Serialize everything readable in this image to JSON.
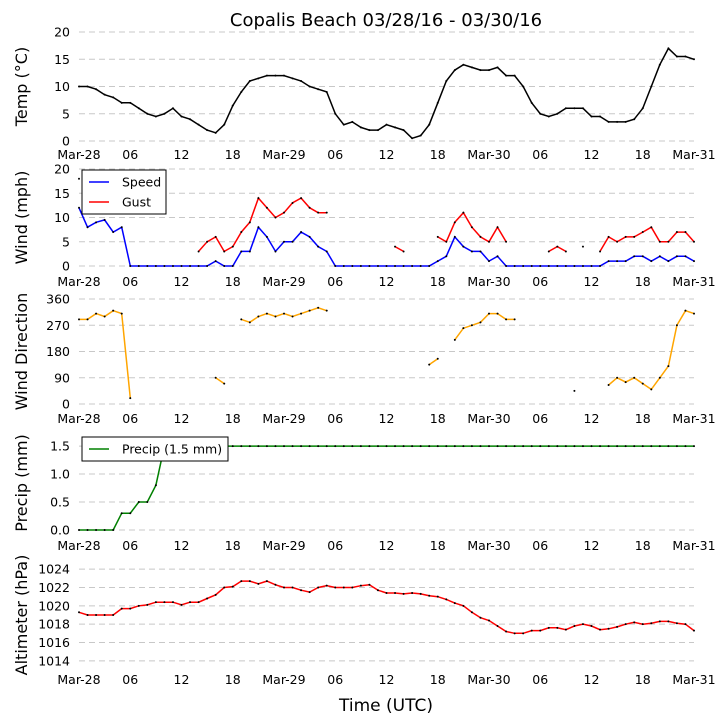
{
  "chart_data": {
    "title": "Copalis Beach 03/28/16 - 03/30/16",
    "xlabel": "Time (UTC)",
    "x_unit": "hours since Mar-28 00 UTC",
    "xlim": [
      0,
      72
    ],
    "x_ticks": [
      0,
      6,
      12,
      18,
      24,
      30,
      36,
      42,
      48,
      54,
      60,
      66,
      72
    ],
    "x_tick_labels": [
      "Mar-28",
      "06",
      "12",
      "18",
      "Mar-29",
      "06",
      "12",
      "18",
      "Mar-30",
      "06",
      "12",
      "18",
      "Mar-31"
    ],
    "panels": [
      {
        "id": "temp",
        "type": "line",
        "ylabel": "Temp ($^\\circ$C)",
        "ylabel_text": "Temp (°C)",
        "ylim": [
          0,
          20
        ],
        "y_ticks": [
          0,
          5,
          10,
          15,
          20
        ],
        "y_tick_labels": [
          "0",
          "5",
          "10",
          "15",
          "20"
        ],
        "legend": null,
        "series": [
          {
            "name": "Temp",
            "color": "#000000",
            "values": [
              10,
              10,
              9.5,
              8.5,
              8,
              7,
              7,
              6,
              5,
              4.5,
              5,
              6,
              4.5,
              4,
              3,
              2,
              1.5,
              3,
              6.5,
              9,
              11,
              11.5,
              12,
              12,
              12,
              11.5,
              11,
              10,
              9.5,
              9,
              5,
              3,
              3.5,
              2.5,
              2,
              2,
              3,
              2.5,
              2,
              0.5,
              1,
              3,
              7,
              11,
              13,
              14,
              13.5,
              13,
              13,
              13.5,
              12,
              12,
              10,
              7,
              5,
              4.5,
              5,
              6,
              6,
              6,
              4.5,
              4.5,
              3.5,
              3.5,
              3.5,
              4,
              6,
              10,
              14,
              17,
              15.5,
              15.5,
              15
            ]
          }
        ]
      },
      {
        "id": "wind",
        "type": "line",
        "ylabel": "Wind (mph)",
        "ylim": [
          0,
          20
        ],
        "y_ticks": [
          0,
          5,
          10,
          15,
          20
        ],
        "y_tick_labels": [
          "0",
          "5",
          "10",
          "15",
          "20"
        ],
        "legend": "upper-left",
        "series": [
          {
            "name": "Speed",
            "color": "#0000ff",
            "values": [
              12,
              8,
              9,
              9.5,
              7,
              8,
              0,
              0,
              0,
              0,
              0,
              0,
              0,
              0,
              0,
              0,
              1,
              0,
              0,
              3,
              3,
              8,
              6,
              3,
              5,
              5,
              7,
              6,
              4,
              3,
              0,
              0,
              0,
              0,
              0,
              0,
              0,
              0,
              0,
              0,
              0,
              0,
              1,
              2,
              6,
              4,
              3,
              3,
              1,
              2,
              0,
              0,
              0,
              0,
              0,
              0,
              0,
              0,
              0,
              0,
              0,
              0,
              1,
              1,
              1,
              2,
              2,
              1,
              2,
              1,
              2,
              2,
              1
            ]
          },
          {
            "name": "Gust",
            "color": "#ff0000",
            "values": [
              18,
              null,
              null,
              null,
              null,
              null,
              null,
              null,
              null,
              null,
              null,
              null,
              null,
              null,
              3,
              5,
              6,
              3,
              4,
              7,
              9,
              14,
              12,
              10,
              11,
              13,
              14,
              12,
              11,
              11,
              null,
              null,
              null,
              null,
              null,
              null,
              null,
              4,
              3,
              null,
              null,
              null,
              6,
              5,
              9,
              11,
              8,
              6,
              5,
              8,
              5,
              null,
              null,
              null,
              null,
              3,
              4,
              3,
              null,
              4,
              null,
              3,
              6,
              5,
              6,
              6,
              7,
              8,
              5,
              5,
              7,
              7,
              5
            ]
          }
        ]
      },
      {
        "id": "direction",
        "type": "line",
        "ylabel": "Wind Direction",
        "ylim": [
          0,
          360
        ],
        "y_ticks": [
          0,
          90,
          180,
          270,
          360
        ],
        "y_tick_labels": [
          "0",
          "90",
          "180",
          "270",
          "360"
        ],
        "legend": null,
        "series": [
          {
            "name": "Direction",
            "color": "#ffa500",
            "values": [
              290,
              290,
              310,
              300,
              320,
              310,
              20,
              null,
              null,
              null,
              null,
              null,
              null,
              null,
              null,
              null,
              90,
              70,
              null,
              290,
              280,
              300,
              310,
              300,
              310,
              300,
              310,
              320,
              330,
              320,
              null,
              null,
              null,
              null,
              null,
              null,
              null,
              null,
              null,
              null,
              null,
              135,
              155,
              null,
              220,
              260,
              270,
              280,
              310,
              310,
              290,
              290,
              null,
              null,
              null,
              null,
              null,
              null,
              45,
              null,
              null,
              null,
              65,
              90,
              75,
              90,
              70,
              50,
              90,
              130,
              270,
              320,
              310
            ]
          }
        ]
      },
      {
        "id": "precip",
        "type": "line",
        "ylabel": "Precip (mm)",
        "ylim": [
          0,
          1.68
        ],
        "y_ticks": [
          0,
          0.5,
          1.0,
          1.5
        ],
        "y_tick_labels": [
          "0.0",
          "0.5",
          "1.0",
          "1.5"
        ],
        "legend": "upper-left",
        "series": [
          {
            "name": "Precip (1.5 mm)",
            "color": "#008000",
            "values": [
              0,
              0,
              0,
              0,
              0,
              0.3,
              0.3,
              0.5,
              0.5,
              0.8,
              1.5,
              1.5,
              1.5,
              1.5,
              1.5,
              1.5,
              1.5,
              1.5,
              1.5,
              1.5,
              1.5,
              1.5,
              1.5,
              1.5,
              1.5,
              1.5,
              1.5,
              1.5,
              1.5,
              1.5,
              1.5,
              1.5,
              1.5,
              1.5,
              1.5,
              1.5,
              1.5,
              1.5,
              1.5,
              1.5,
              1.5,
              1.5,
              1.5,
              1.5,
              1.5,
              1.5,
              1.5,
              1.5,
              1.5,
              1.5,
              1.5,
              1.5,
              1.5,
              1.5,
              1.5,
              1.5,
              1.5,
              1.5,
              1.5,
              1.5,
              1.5,
              1.5,
              1.5,
              1.5,
              1.5,
              1.5,
              1.5,
              1.5,
              1.5,
              1.5,
              1.5,
              1.5,
              1.5
            ]
          }
        ]
      },
      {
        "id": "altimeter",
        "type": "line",
        "ylabel": "Altimeter (hPa)",
        "ylim": [
          1013,
          1025
        ],
        "y_ticks": [
          1014,
          1016,
          1018,
          1020,
          1022,
          1024
        ],
        "y_tick_labels": [
          "1014",
          "1016",
          "1018",
          "1020",
          "1022",
          "1024"
        ],
        "legend": null,
        "series": [
          {
            "name": "Altimeter",
            "color": "#ff0000",
            "values": [
              1019.3,
              1019,
              1019,
              1019,
              1019,
              1019.7,
              1019.7,
              1020,
              1020.1,
              1020.4,
              1020.4,
              1020.4,
              1020.1,
              1020.4,
              1020.4,
              1020.8,
              1021.2,
              1022,
              1022.1,
              1022.7,
              1022.7,
              1022.4,
              1022.7,
              1022.3,
              1022,
              1022,
              1021.7,
              1021.5,
              1022,
              1022.2,
              1022,
              1022,
              1022,
              1022.2,
              1022.3,
              1021.7,
              1021.4,
              1021.4,
              1021.3,
              1021.4,
              1021.3,
              1021.1,
              1021,
              1020.7,
              1020.3,
              1020,
              1019.3,
              1018.7,
              1018.4,
              1017.8,
              1017.2,
              1017,
              1017,
              1017.3,
              1017.3,
              1017.6,
              1017.6,
              1017.4,
              1017.8,
              1018,
              1017.8,
              1017.4,
              1017.5,
              1017.7,
              1018,
              1018.2,
              1018,
              1018.1,
              1018.3,
              1018.3,
              1018.1,
              1018,
              1017.3
            ]
          }
        ]
      }
    ]
  }
}
